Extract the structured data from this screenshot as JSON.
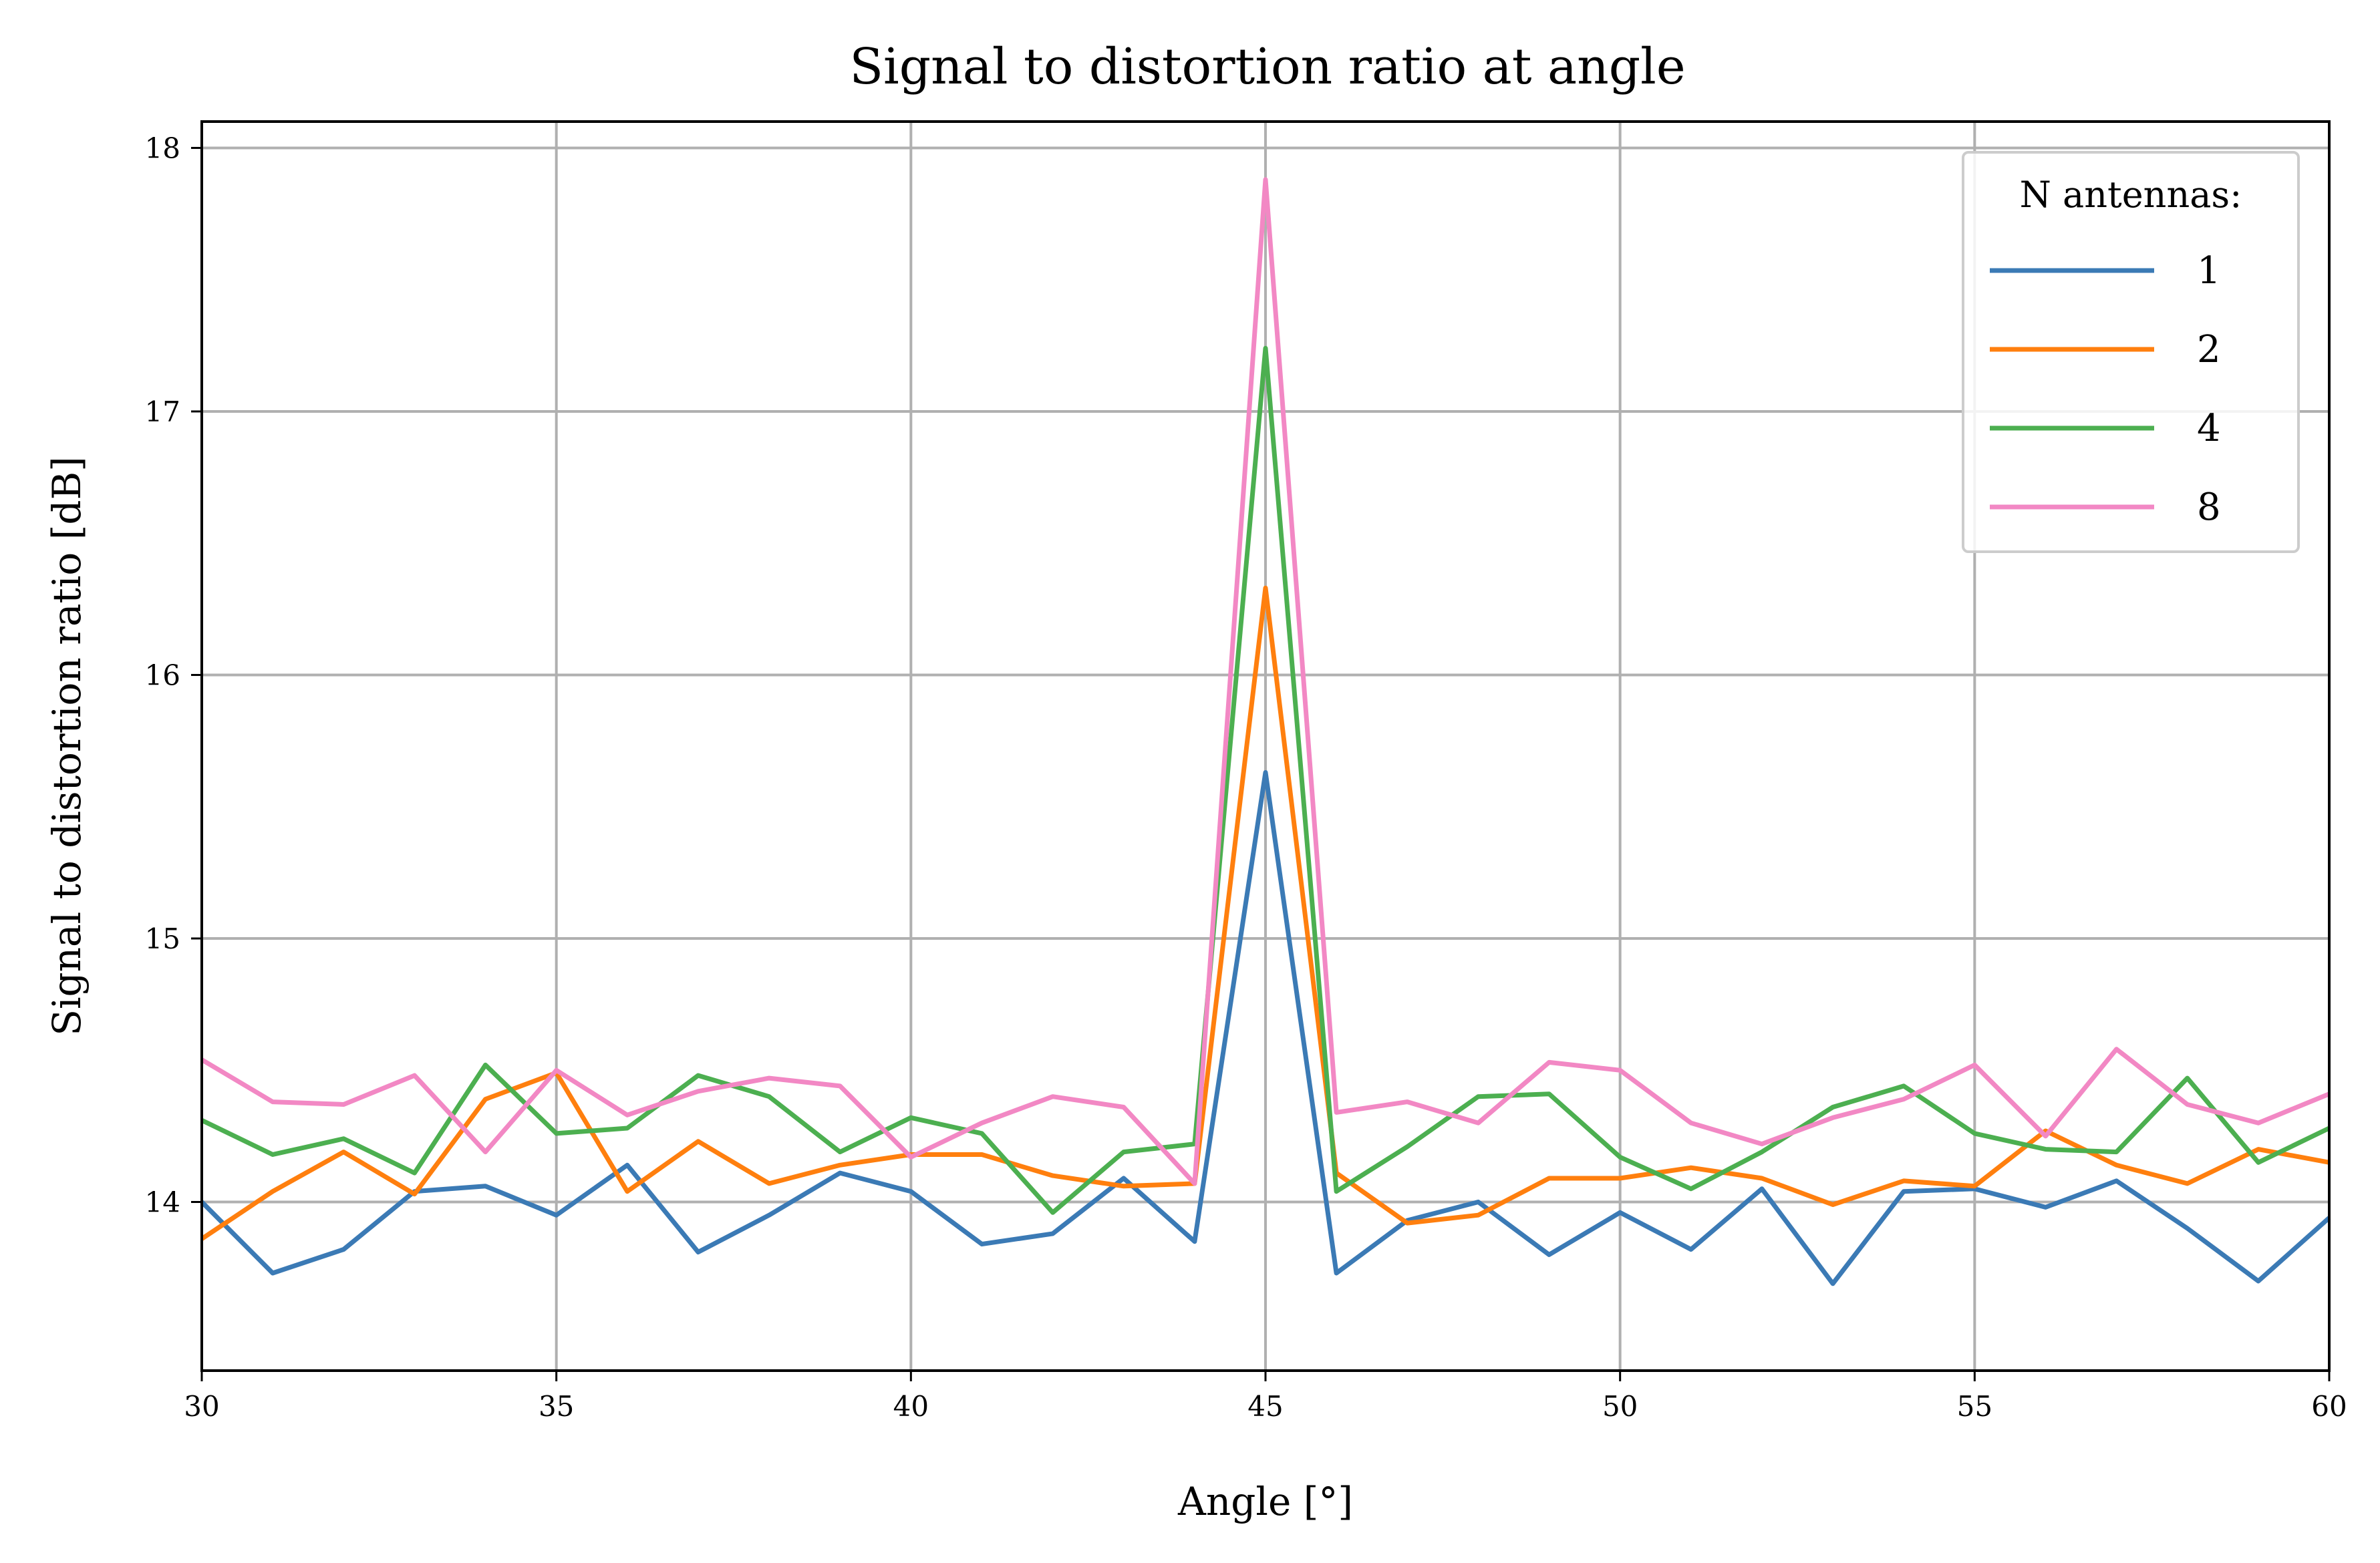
{
  "chart_data": {
    "type": "line",
    "title": "Signal to distortion ratio at angle",
    "xlabel": "Angle [°]",
    "ylabel": "Signal to distortion ratio [dB]",
    "xlim": [
      30,
      60
    ],
    "ylim": [
      13.36,
      18.1
    ],
    "xticks": [
      30,
      35,
      40,
      45,
      50,
      55,
      60
    ],
    "yticks": [
      14,
      15,
      16,
      17,
      18
    ],
    "grid": true,
    "legend": {
      "title": "N antennas:",
      "placement": "top-right"
    },
    "x": [
      30,
      31,
      32,
      33,
      34,
      35,
      36,
      37,
      38,
      39,
      40,
      41,
      42,
      43,
      44,
      45,
      46,
      47,
      48,
      49,
      50,
      51,
      52,
      53,
      54,
      55,
      56,
      57,
      58,
      59,
      60
    ],
    "series": [
      {
        "name": "1",
        "color": "#3b7ab5",
        "values": [
          14.0,
          13.73,
          13.82,
          14.04,
          14.06,
          13.95,
          14.14,
          13.81,
          13.95,
          14.11,
          14.04,
          13.84,
          13.88,
          14.09,
          13.85,
          15.63,
          13.73,
          13.93,
          14.0,
          13.8,
          13.96,
          13.82,
          14.05,
          13.69,
          14.04,
          14.05,
          13.98,
          14.08,
          13.9,
          13.7,
          13.94
        ]
      },
      {
        "name": "2",
        "color": "#ff7f0e",
        "values": [
          13.86,
          14.04,
          14.19,
          14.03,
          14.39,
          14.49,
          14.04,
          14.23,
          14.07,
          14.14,
          14.18,
          14.18,
          14.1,
          14.06,
          14.07,
          16.33,
          14.11,
          13.92,
          13.95,
          14.09,
          14.09,
          14.13,
          14.09,
          13.99,
          14.08,
          14.06,
          14.27,
          14.14,
          14.07,
          14.2,
          14.15
        ]
      },
      {
        "name": "4",
        "color": "#4caf50",
        "values": [
          14.31,
          14.18,
          14.24,
          14.11,
          14.52,
          14.26,
          14.28,
          14.48,
          14.4,
          14.19,
          14.32,
          14.26,
          13.96,
          14.19,
          14.22,
          17.24,
          14.04,
          14.21,
          14.4,
          14.41,
          14.17,
          14.05,
          14.19,
          14.36,
          14.44,
          14.26,
          14.2,
          14.19,
          14.47,
          14.15,
          14.28
        ]
      },
      {
        "name": "8",
        "color": "#f288c4",
        "values": [
          14.54,
          14.38,
          14.37,
          14.48,
          14.19,
          14.5,
          14.33,
          14.42,
          14.47,
          14.44,
          14.17,
          14.3,
          14.4,
          14.36,
          14.07,
          17.88,
          14.34,
          14.38,
          14.3,
          14.53,
          14.5,
          14.3,
          14.22,
          14.32,
          14.39,
          14.52,
          14.25,
          14.58,
          14.37,
          14.3,
          14.41
        ]
      }
    ]
  }
}
